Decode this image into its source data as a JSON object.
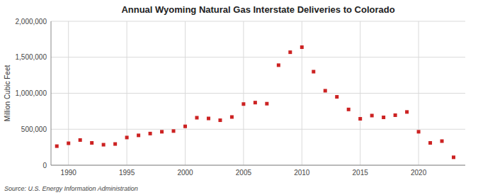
{
  "chart_data": {
    "type": "scatter",
    "title": "Annual Wyoming Natural Gas Interstate Deliveries to Colorado",
    "ylabel": "Million Cubic Feet",
    "annotations": [
      "Source: U.S. Energy Information Administration"
    ],
    "x": [
      1989,
      1990,
      1991,
      1992,
      1993,
      1994,
      1995,
      1996,
      1997,
      1998,
      1999,
      2000,
      2001,
      2002,
      2003,
      2004,
      2005,
      2006,
      2007,
      2008,
      2009,
      2010,
      2011,
      2012,
      2013,
      2014,
      2015,
      2016,
      2017,
      2018,
      2019,
      2020,
      2021,
      2022,
      2023
    ],
    "values": [
      265000,
      305000,
      350000,
      310000,
      285000,
      295000,
      385000,
      415000,
      440000,
      465000,
      475000,
      540000,
      660000,
      650000,
      625000,
      670000,
      850000,
      870000,
      855000,
      1390000,
      1570000,
      1640000,
      1300000,
      1035000,
      950000,
      775000,
      645000,
      690000,
      665000,
      695000,
      740000,
      465000,
      310000,
      335000,
      110000
    ],
    "color": "#cc2222",
    "marker": "square",
    "xlim": [
      1988.5,
      2024
    ],
    "ylim": [
      0,
      2000000
    ],
    "xticks": [
      1990,
      1995,
      2000,
      2005,
      2010,
      2015,
      2020
    ],
    "yticks": [
      0,
      {
        "value": 500000,
        "label": "500,000"
      },
      {
        "value": 1000000,
        "label": "1,000,000"
      },
      {
        "value": 1500000,
        "label": "1,500,000"
      },
      {
        "value": 2000000,
        "label": "2,000,000"
      }
    ],
    "grid": true
  }
}
